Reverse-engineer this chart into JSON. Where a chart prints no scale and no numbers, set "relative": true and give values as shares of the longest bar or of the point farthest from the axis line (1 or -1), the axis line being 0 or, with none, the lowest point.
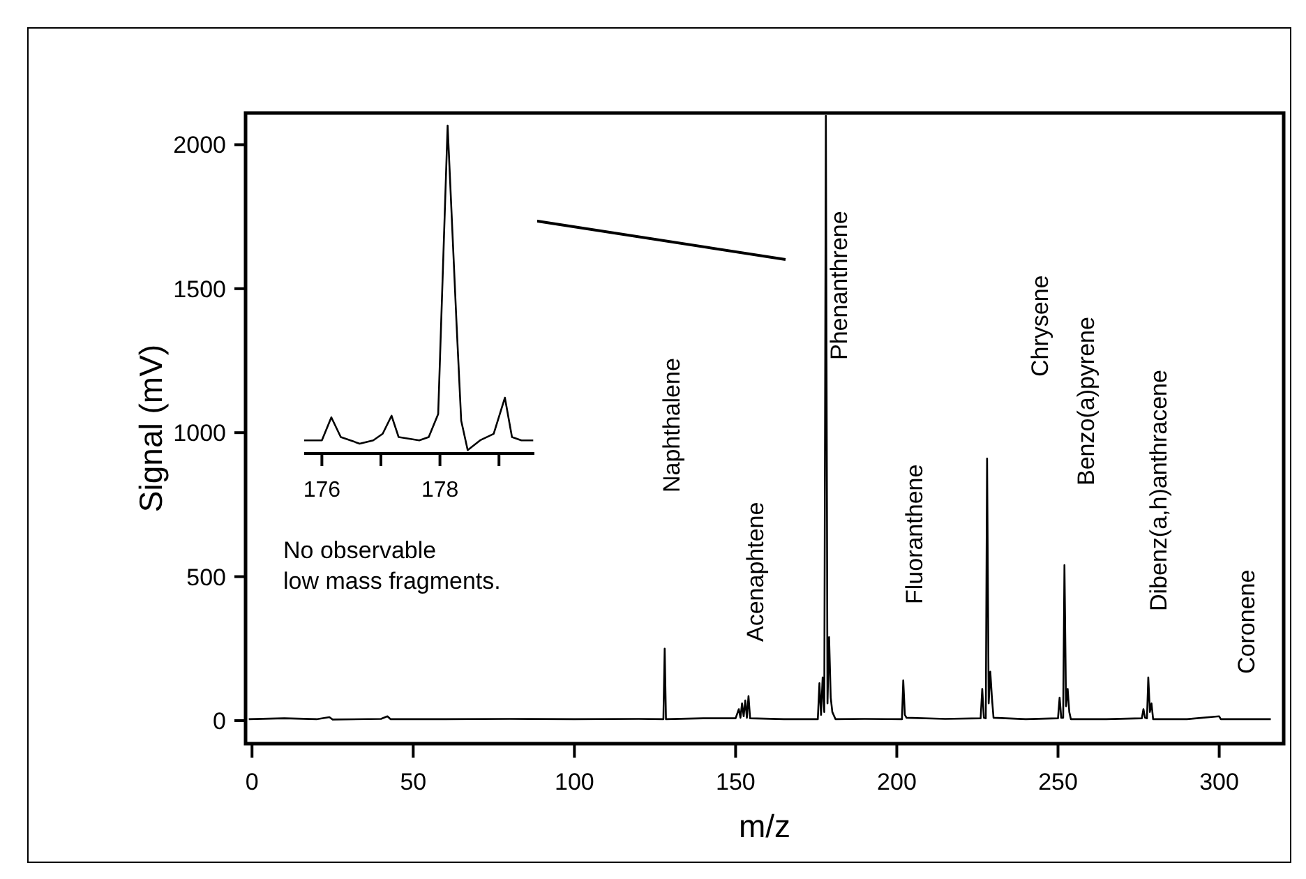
{
  "chart_data": [
    {
      "type": "line",
      "xlabel": "m/z",
      "ylabel": "Signal (mV)",
      "xlim": [
        -2,
        320
      ],
      "ylim": [
        -80,
        2110
      ],
      "xticks": [
        0,
        50,
        100,
        150,
        200,
        250,
        300
      ],
      "yticks": [
        0,
        500,
        1000,
        1500,
        2000
      ],
      "series": [
        {
          "color": "#000000",
          "x": [
            -1,
            10,
            20,
            24,
            25,
            40,
            42,
            43,
            60,
            80,
            100,
            120,
            127.6,
            128,
            128.4,
            140,
            150,
            151,
            151.5,
            152,
            152.5,
            153,
            153.5,
            154,
            154.5,
            165,
            175.5,
            176,
            176.5,
            177,
            177.5,
            178,
            178.5,
            179,
            179.5,
            180,
            181,
            190,
            201.6,
            202,
            202.5,
            203,
            215,
            226,
            226.5,
            227,
            227.6,
            228,
            228.5,
            229,
            229.5,
            230,
            240,
            250,
            250.5,
            251,
            251.6,
            252,
            252.5,
            253,
            253.5,
            254,
            265,
            276,
            276.5,
            277,
            277.6,
            278,
            278.5,
            279,
            279.5,
            290,
            300,
            300.5,
            310,
            316
          ],
          "values": [
            5,
            8,
            5,
            12,
            4,
            6,
            15,
            5,
            5,
            6,
            5,
            6,
            5,
            250,
            5,
            8,
            8,
            40,
            10,
            60,
            15,
            70,
            10,
            85,
            8,
            5,
            5,
            130,
            20,
            150,
            30,
            2100,
            60,
            290,
            80,
            30,
            5,
            6,
            5,
            140,
            20,
            10,
            6,
            8,
            110,
            10,
            8,
            910,
            60,
            170,
            80,
            10,
            5,
            8,
            80,
            10,
            10,
            540,
            50,
            110,
            30,
            5,
            5,
            8,
            40,
            10,
            8,
            150,
            30,
            60,
            5,
            5,
            15,
            5,
            5,
            5
          ]
        }
      ],
      "annotations": [
        "Naphthalene",
        "Acenaphtene",
        "Phenanthrene",
        "Fluoranthene",
        "Chrysene",
        "Benzo(a)pyrene",
        "Dibenz(a,h)anthracene",
        "Coronene",
        "No observable\nlow mass fragments."
      ]
    },
    {
      "type": "line",
      "relative": true,
      "tick_labels": "x",
      "xlim": [
        175.7,
        179.6
      ],
      "xticks": [
        176,
        {
          "value": 177,
          "label": null
        },
        178,
        {
          "value": 179,
          "label": null
        }
      ],
      "series": [
        {
          "color": "#000000",
          "x": [
            175.7,
            176.0,
            176.16,
            176.32,
            176.64,
            176.87,
            177.03,
            177.18,
            177.3,
            177.65,
            177.81,
            177.97,
            178.13,
            178.28,
            178.36,
            178.47,
            178.68,
            178.91,
            179.1,
            179.22,
            179.38,
            179.58
          ],
          "values": [
            0.04,
            0.04,
            0.11,
            0.05,
            0.03,
            0.04,
            0.06,
            0.115,
            0.05,
            0.04,
            0.05,
            0.12,
            1.0,
            0.4,
            0.1,
            0.01,
            0.04,
            0.06,
            0.17,
            0.05,
            0.04,
            0.04
          ]
        }
      ]
    }
  ]
}
